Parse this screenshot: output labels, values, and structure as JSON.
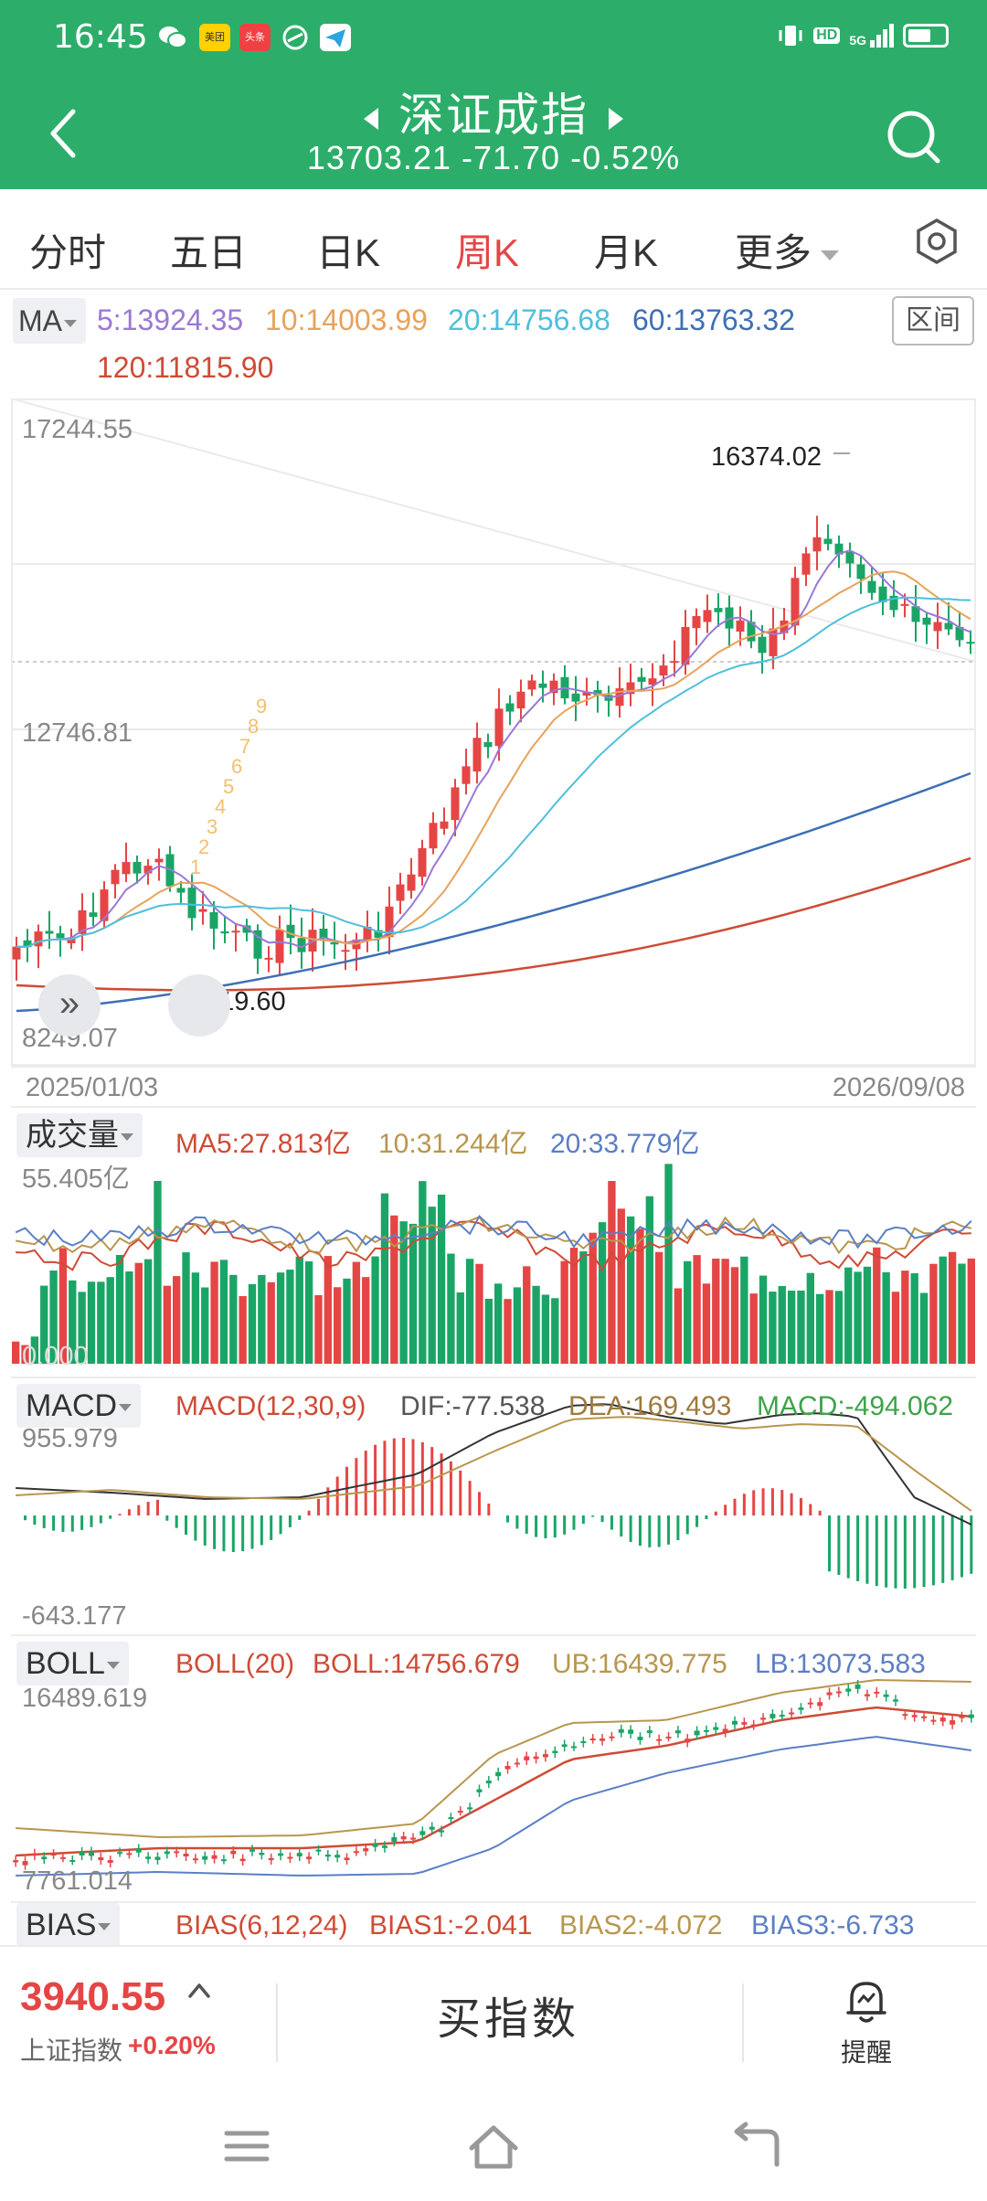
{
  "status": {
    "time": "16:45",
    "notif_labels": [
      "美团",
      "头条"
    ],
    "network": "5G",
    "hd": "HD"
  },
  "header": {
    "title": "深证成指",
    "last": "13703.21",
    "change": "-71.70",
    "change_pct": "-0.52%"
  },
  "tabs": [
    {
      "label": "分时",
      "active": false
    },
    {
      "label": "五日",
      "active": false
    },
    {
      "label": "日K",
      "active": false
    },
    {
      "label": "周K",
      "active": true
    },
    {
      "label": "月K",
      "active": false
    },
    {
      "label": "更多",
      "active": false
    }
  ],
  "ma_legend": {
    "selector": "MA",
    "range_button": "区间",
    "items": [
      {
        "text": "5:13924.35",
        "color": "#9b78d6"
      },
      {
        "text": "10:14003.99",
        "color": "#e8a25a"
      },
      {
        "text": "20:14756.68",
        "color": "#4fbfdc"
      },
      {
        "text": "60:13763.32",
        "color": "#3e6fb5"
      },
      {
        "text": "120:11815.90",
        "color": "#cf4b35"
      }
    ]
  },
  "main_chart": {
    "type": "candlestick",
    "y_top_label": "17244.55",
    "y_mid_label": "12746.81",
    "y_bottom_label": "8249.07",
    "high_label": "16374.02",
    "low_label": "9119.60",
    "start_date": "2025/01/03",
    "end_date": "2026/09/08",
    "td_marks": [
      "1",
      "2",
      "3",
      "4",
      "5",
      "6",
      "7",
      "8",
      "9"
    ]
  },
  "volume_panel": {
    "selector": "成交量",
    "ma5": "MA5:27.813亿",
    "ma10": "10:31.244亿",
    "ma20": "20:33.779亿",
    "max_label": "55.405亿",
    "min_label": "0.000"
  },
  "macd_panel": {
    "selector": "MACD",
    "params": "MACD(12,30,9)",
    "dif": "DIF:-77.538",
    "dea": "DEA:169.493",
    "macd": "MACD:-494.062",
    "max_label": "955.979",
    "min_label": "-643.177"
  },
  "boll_panel": {
    "selector": "BOLL",
    "params": "BOLL(20)",
    "mid": "BOLL:14756.679",
    "ub": "UB:16439.775",
    "lb": "LB:13073.583",
    "max_label": "16489.619",
    "min_label": "7761.014"
  },
  "bias_panel": {
    "selector": "BIAS",
    "params": "BIAS(6,12,24)",
    "b1": "BIAS1:-2.041",
    "b2": "BIAS2:-4.072",
    "b3": "BIAS3:-6.733"
  },
  "bottom_bar": {
    "sh_price": "3940.55",
    "sh_name": "上证指数",
    "sh_change": "+0.20%",
    "buy_label": "买指数",
    "remind_label": "提醒"
  },
  "colors": {
    "header_green": "#2cae6a",
    "up_red": "#e64545",
    "down_green": "#1aa566"
  }
}
